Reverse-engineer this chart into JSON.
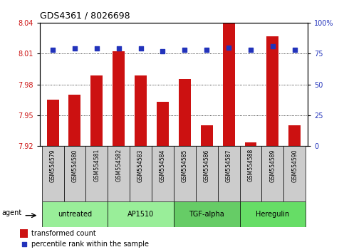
{
  "title": "GDS4361 / 8026698",
  "samples": [
    "GSM554579",
    "GSM554580",
    "GSM554581",
    "GSM554582",
    "GSM554583",
    "GSM554584",
    "GSM554585",
    "GSM554586",
    "GSM554587",
    "GSM554588",
    "GSM554589",
    "GSM554590"
  ],
  "bar_values": [
    7.965,
    7.97,
    7.989,
    8.012,
    7.989,
    7.963,
    7.985,
    7.94,
    8.04,
    7.924,
    8.027,
    7.94
  ],
  "percentile_values": [
    78,
    79,
    79,
    79,
    79,
    77,
    78,
    78,
    80,
    78,
    81,
    78
  ],
  "ylim_left": [
    7.92,
    8.04
  ],
  "ylim_right": [
    0,
    100
  ],
  "yticks_left": [
    7.92,
    7.95,
    7.98,
    8.01,
    8.04
  ],
  "yticks_right": [
    0,
    25,
    50,
    75,
    100
  ],
  "bar_color": "#cc1111",
  "dot_color": "#2233bb",
  "bar_bottom": 7.92,
  "groups": [
    {
      "label": "untreated",
      "start": 0,
      "end": 3,
      "color": "#99ee99"
    },
    {
      "label": "AP1510",
      "start": 3,
      "end": 6,
      "color": "#99ee99"
    },
    {
      "label": "TGF-alpha",
      "start": 6,
      "end": 9,
      "color": "#66cc66"
    },
    {
      "label": "Heregulin",
      "start": 9,
      "end": 12,
      "color": "#66dd66"
    }
  ],
  "legend_bar_label": "transformed count",
  "legend_dot_label": "percentile rank within the sample",
  "agent_label": "agent",
  "background_color": "#ffffff",
  "label_bg_color": "#cccccc",
  "border_color": "#000000"
}
